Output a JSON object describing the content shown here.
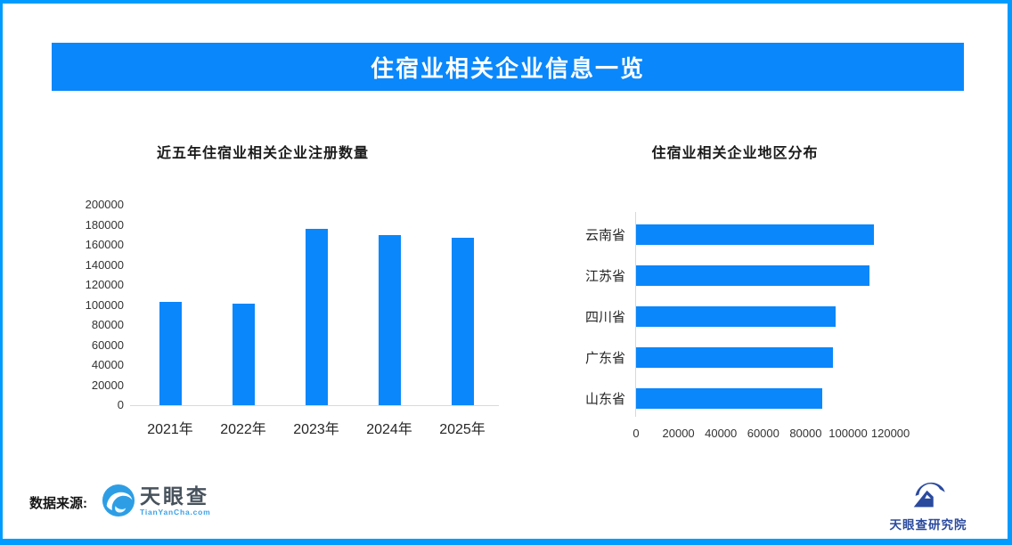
{
  "banner": {
    "title": "住宿业相关企业信息一览"
  },
  "colors": {
    "accent": "#0a87fb",
    "page_border": "#009bfe",
    "axis_line": "#d9d9d9",
    "tick_text": "#333333",
    "tianyancha_text": "#47525c",
    "tianyancha_sub": "#3aa1e8",
    "research_blue": "#2a4a9e"
  },
  "footer": {
    "source_label": "数据来源:",
    "tianyancha_name": "天眼查",
    "tianyancha_sub": "TianYanCha.com",
    "research_name": "天眼查研究院"
  },
  "chart_data": [
    {
      "type": "bar",
      "orientation": "vertical",
      "title": "近五年住宿业相关企业注册数量",
      "categories": [
        "2021年",
        "2022年",
        "2023年",
        "2024年",
        "2025年"
      ],
      "values": [
        103000,
        101000,
        176000,
        170000,
        167000
      ],
      "ylim": [
        0,
        200000
      ],
      "ytick_step": 20000,
      "grid": false,
      "legend": "none",
      "bar_color": "#0a87fb"
    },
    {
      "type": "bar",
      "orientation": "horizontal",
      "title": "住宿业相关企业地区分布",
      "categories": [
        "云南省",
        "江苏省",
        "四川省",
        "广东省",
        "山东省"
      ],
      "values": [
        112000,
        110000,
        94000,
        93000,
        88000
      ],
      "xlim": [
        0,
        120000
      ],
      "xtick_step": 20000,
      "grid": false,
      "legend": "none",
      "bar_color": "#0a87fb"
    }
  ]
}
